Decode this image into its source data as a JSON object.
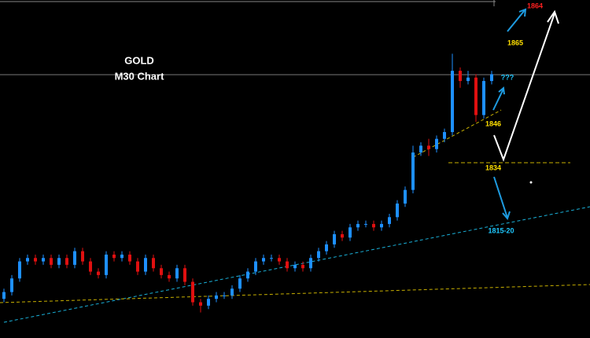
{
  "chart_data": {
    "type": "candlestick",
    "title": [
      "GOLD",
      "M30 Chart"
    ],
    "annotations": [
      "1864",
      "1865",
      "???",
      "1846",
      "1834",
      "1815-20"
    ],
    "ylim": [
      1782.5,
      1881.8
    ],
    "up_color": "#1e90ff",
    "down_color": "#e01010",
    "open": [
      1794,
      1796,
      1800,
      1805,
      1806,
      1805,
      1806,
      1804,
      1806,
      1804,
      1808,
      1805,
      1802,
      1801,
      1807,
      1806,
      1807,
      1805,
      1802,
      1806,
      1803,
      1801,
      1800,
      1803,
      1799,
      1793,
      1792,
      1794,
      1795,
      1795,
      1797,
      1800,
      1802,
      1805,
      1806,
      1806,
      1805,
      1803,
      1804,
      1803,
      1806,
      1808,
      1810,
      1813,
      1812,
      1815,
      1816,
      1816,
      1815,
      1816,
      1818,
      1822,
      1826,
      1837,
      1839,
      1838,
      1841,
      1843,
      1861,
      1858,
      1859,
      1848,
      1858
    ],
    "high": [
      1797,
      1801,
      1806,
      1807,
      1807,
      1807,
      1807,
      1807,
      1807,
      1809,
      1809,
      1806,
      1803,
      1808,
      1808,
      1808,
      1808,
      1806,
      1807,
      1807,
      1804,
      1802,
      1804,
      1804,
      1800,
      1794,
      1795,
      1796,
      1796,
      1798,
      1801,
      1803,
      1806,
      1807,
      1807,
      1807,
      1806,
      1805,
      1805,
      1807,
      1809,
      1811,
      1814,
      1814,
      1816,
      1817,
      1817,
      1817,
      1817,
      1819,
      1823,
      1827,
      1839,
      1840,
      1841,
      1842,
      1844,
      1866,
      1862,
      1861,
      1860,
      1859,
      1861
    ],
    "low": [
      1793,
      1795,
      1799,
      1804,
      1804,
      1804,
      1803,
      1803,
      1803,
      1803,
      1804,
      1801,
      1800,
      1800,
      1805,
      1805,
      1804,
      1801,
      1801,
      1802,
      1800,
      1799,
      1799,
      1798,
      1792,
      1790,
      1791,
      1793,
      1794,
      1794,
      1796,
      1799,
      1801,
      1804,
      1805,
      1804,
      1802,
      1802,
      1802,
      1802,
      1805,
      1807,
      1809,
      1811,
      1811,
      1814,
      1815,
      1814,
      1814,
      1815,
      1817,
      1821,
      1825,
      1836,
      1836,
      1837,
      1840,
      1842,
      1856,
      1857,
      1846,
      1847,
      1857
    ],
    "close": [
      1796,
      1800,
      1805,
      1806,
      1805,
      1806,
      1804,
      1806,
      1804,
      1808,
      1805,
      1802,
      1801,
      1807,
      1806,
      1807,
      1805,
      1802,
      1806,
      1803,
      1801,
      1800,
      1803,
      1799,
      1793,
      1792,
      1794,
      1795,
      1795,
      1797,
      1800,
      1802,
      1805,
      1806,
      1806,
      1805,
      1803,
      1804,
      1803,
      1806,
      1808,
      1810,
      1813,
      1812,
      1815,
      1816,
      1816,
      1815,
      1816,
      1818,
      1822,
      1826,
      1837,
      1839,
      1838,
      1841,
      1843,
      1861,
      1858,
      1859,
      1848,
      1858,
      1860
    ]
  }
}
